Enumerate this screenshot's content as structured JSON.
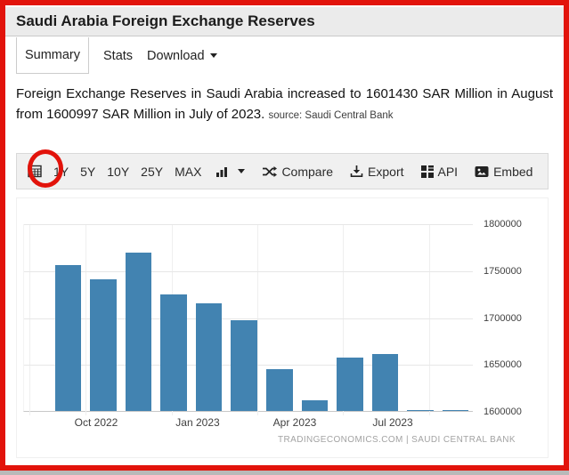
{
  "header": {
    "title": "Saudi Arabia Foreign Exchange Reserves"
  },
  "tabs": [
    {
      "label": "Summary",
      "active": true
    },
    {
      "label": "Stats",
      "active": false
    },
    {
      "label": "Download",
      "active": false,
      "has_caret": true
    }
  ],
  "summary": {
    "text": "Foreign Exchange Reserves in Saudi Arabia increased to 1601430 SAR Million in August from 1600997 SAR Million in July of 2023.",
    "source_label": "source: Saudi Central Bank"
  },
  "toolbar": {
    "range_buttons": [
      "1Y",
      "5Y",
      "10Y",
      "25Y",
      "MAX"
    ],
    "compare_label": "Compare",
    "export_label": "Export",
    "api_label": "API",
    "embed_label": "Embed",
    "icons": [
      "calendar-icon",
      "bar-chart-icon",
      "chevron-down-icon",
      "shuffle-icon",
      "download-icon",
      "grid-icon",
      "image-icon"
    ]
  },
  "annotation": {
    "shape": "circle",
    "target": "1Y",
    "color": "#e2130b"
  },
  "chart_data": {
    "type": "bar",
    "categories": [
      "Sep 2022",
      "Oct 2022",
      "Nov 2022",
      "Dec 2022",
      "Jan 2023",
      "Feb 2023",
      "Mar 2023",
      "Apr 2023",
      "May 2023",
      "Jun 2023",
      "Jul 2023",
      "Aug 2023"
    ],
    "values": [
      1755000,
      1740000,
      1769000,
      1724000,
      1715000,
      1697000,
      1645000,
      1611000,
      1657000,
      1661000,
      1600997,
      1601430
    ],
    "x_tick_labels": [
      "Oct 2022",
      "Jan 2023",
      "Apr 2023",
      "Jul 2023"
    ],
    "y_ticks": [
      1800000,
      1750000,
      1700000,
      1650000,
      1600000
    ],
    "ylim": [
      1600000,
      1800000
    ],
    "grid": true,
    "legend": "none",
    "bar_color": "#4283b1",
    "watermark": "TRADINGECONOMICS.COM | SAUDI CENTRAL BANK"
  }
}
